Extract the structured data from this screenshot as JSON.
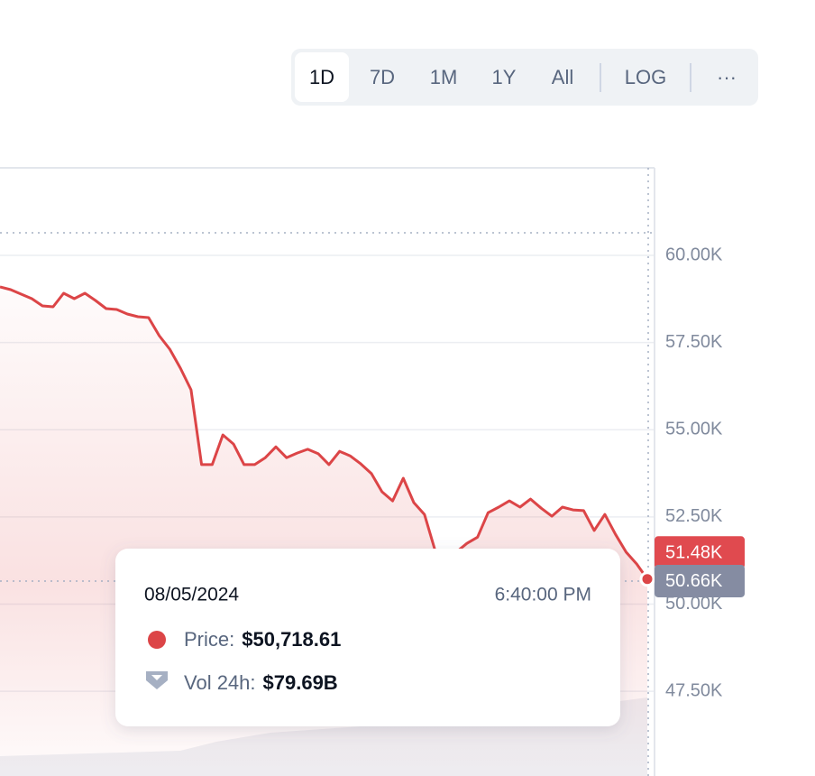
{
  "toolbar": {
    "buttons": [
      "1D",
      "7D",
      "1M",
      "1Y",
      "All",
      "LOG",
      "···"
    ],
    "active": "1D"
  },
  "chart_data": {
    "type": "line",
    "series": [
      {
        "name": "Price",
        "color": "#dc4547",
        "values": [
          59094,
          59017,
          58887,
          58758,
          58551,
          58525,
          58913,
          58758,
          58913,
          58706,
          58473,
          58447,
          58318,
          58240,
          58214,
          57697,
          57309,
          56765,
          56144,
          54000,
          54000,
          54850,
          54590,
          54000,
          54000,
          54200,
          54510,
          54200,
          54330,
          54440,
          54310,
          54000,
          54380,
          54250,
          54020,
          53740,
          53220,
          52960,
          53610,
          52910,
          52570,
          51540,
          51490,
          51490,
          51740,
          51920,
          52620,
          52780,
          52960,
          52780,
          53010,
          52750,
          52520,
          52780,
          52700,
          52680,
          52110,
          52570,
          52000,
          51490,
          51150,
          50718.61
        ]
      }
    ],
    "ylim": [
      45070,
      62510
    ],
    "yticks": [
      {
        "value": 60000,
        "label": "60.00K"
      },
      {
        "value": 57500,
        "label": "57.50K"
      },
      {
        "value": 55000,
        "label": "55.00K"
      },
      {
        "value": 52500,
        "label": "52.50K"
      },
      {
        "value": 50000,
        "label": "50.00K"
      },
      {
        "value": 47500,
        "label": "47.50K"
      }
    ],
    "grid": true,
    "price_badges": [
      {
        "value": 51480,
        "label": "51.48K",
        "color": "#e04a4f"
      },
      {
        "value": 50660,
        "label": "50.66K",
        "color": "#858ca2"
      }
    ]
  },
  "tooltip": {
    "date": "08/05/2024",
    "time": "6:40:00 PM",
    "price_label": "Price:",
    "price": "$50,718.61",
    "volume_label": "Vol 24h:",
    "volume": "$79.69B"
  }
}
